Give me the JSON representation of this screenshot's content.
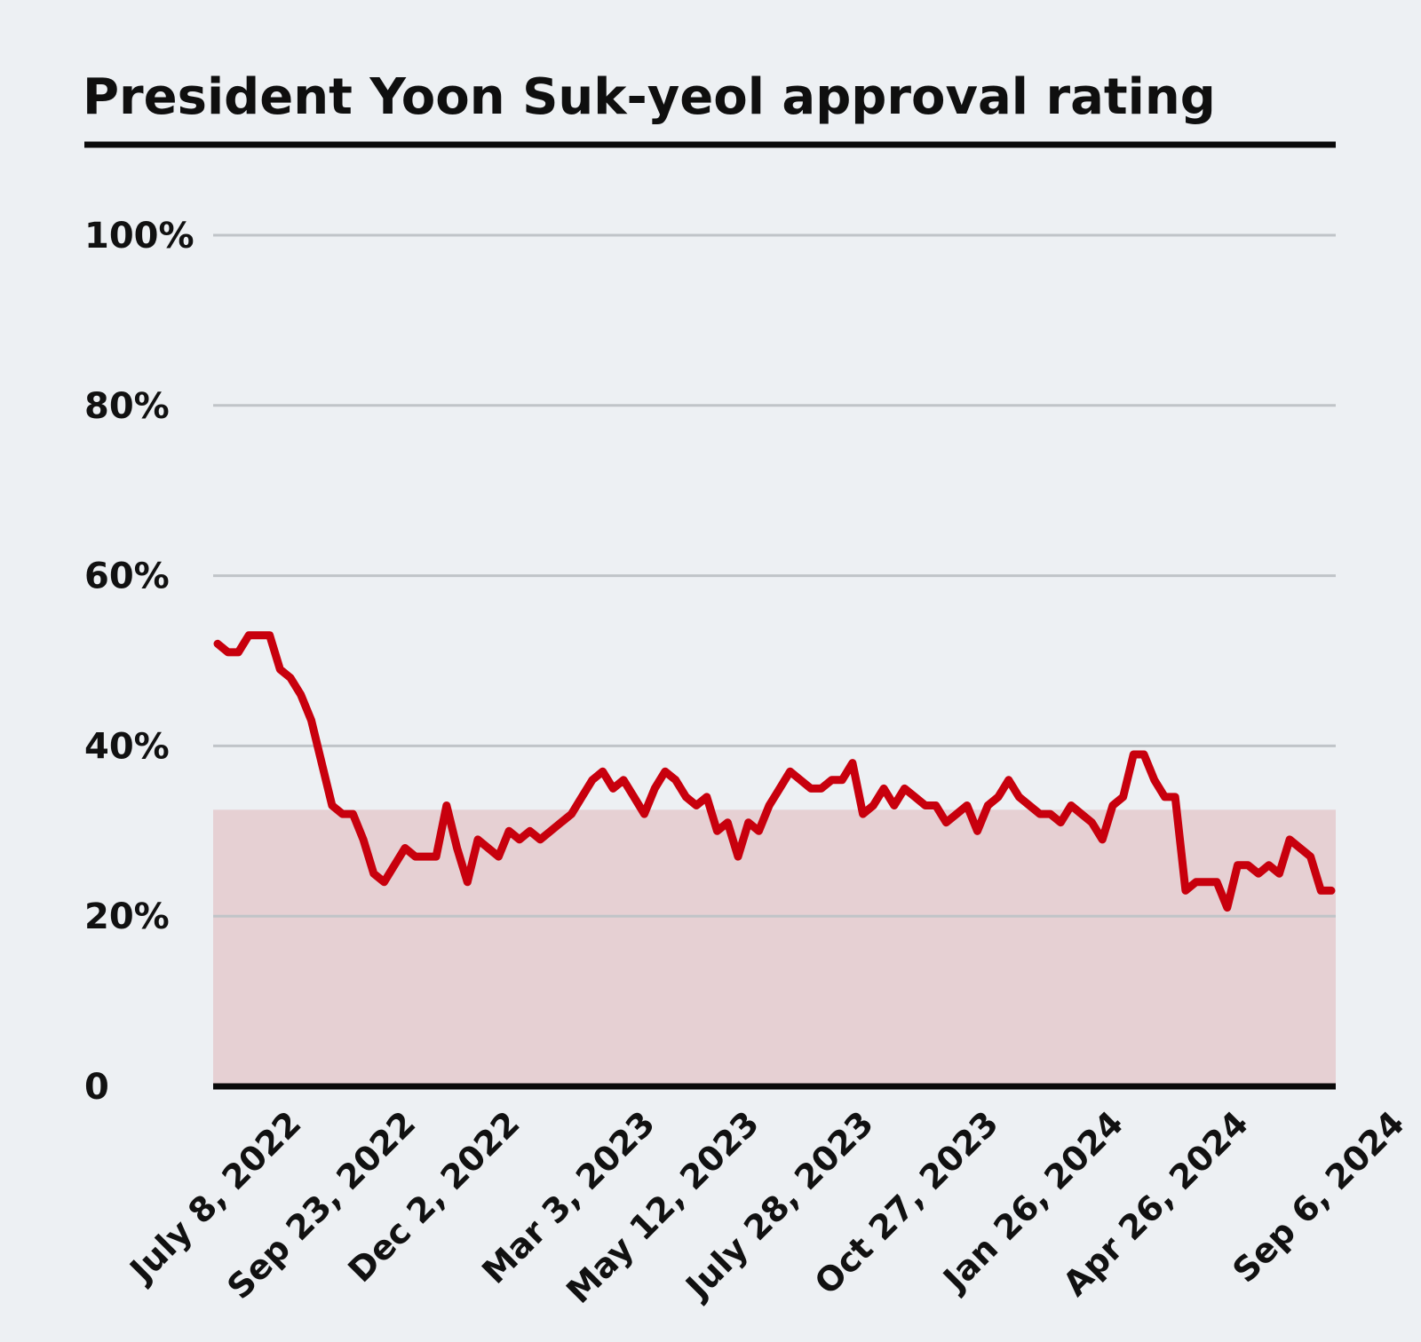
{
  "chart_data": {
    "type": "line",
    "title": "President Yoon Suk-yeol approval rating",
    "xlabel": "",
    "ylabel": "",
    "ylim": [
      0,
      100
    ],
    "y_ticks": [
      {
        "value": 0,
        "label": "0"
      },
      {
        "value": 20,
        "label": "20%"
      },
      {
        "value": 40,
        "label": "40%"
      },
      {
        "value": 60,
        "label": "60%"
      },
      {
        "value": 80,
        "label": "80%"
      },
      {
        "value": 100,
        "label": "100%"
      }
    ],
    "x_ticks": [
      {
        "index": 7,
        "label": "July 8, 2022"
      },
      {
        "index": 18,
        "label": "Sep 23, 2022"
      },
      {
        "index": 28,
        "label": "Dec 2, 2022"
      },
      {
        "index": 41,
        "label": "Mar 3, 2023"
      },
      {
        "index": 51,
        "label": "May 12, 2023"
      },
      {
        "index": 62,
        "label": "July 28, 2023"
      },
      {
        "index": 74,
        "label": "Oct 27, 2023"
      },
      {
        "index": 86,
        "label": "Jan 26, 2024"
      },
      {
        "index": 98,
        "label": "Apr 26, 2024"
      },
      {
        "index": 113,
        "label": "Sep 6, 2024"
      }
    ],
    "shaded_band": {
      "from": 0,
      "to": 32.5,
      "color": "#e6d0d3"
    },
    "grid": true,
    "colors": {
      "line": "#c8000d",
      "grid": "#c0c4c8",
      "axis": "#0a0a0a",
      "background": "#edf0f3"
    },
    "series": [
      {
        "values": [
          52,
          51,
          51,
          53,
          53,
          53,
          49,
          48,
          46,
          43,
          38,
          33,
          32,
          32,
          29,
          25,
          24,
          26,
          28,
          27,
          27,
          27,
          33,
          28,
          24,
          29,
          28,
          27,
          30,
          29,
          30,
          29,
          30,
          31,
          32,
          34,
          36,
          37,
          35,
          36,
          34,
          32,
          35,
          37,
          36,
          34,
          33,
          34,
          30,
          31,
          27,
          31,
          30,
          33,
          35,
          37,
          36,
          35,
          35,
          36,
          36,
          38,
          32,
          33,
          35,
          33,
          35,
          34,
          33,
          33,
          31,
          32,
          33,
          30,
          33,
          34,
          36,
          34,
          33,
          32,
          32,
          31,
          33,
          32,
          31,
          29,
          33,
          34,
          39,
          39,
          36,
          34,
          34,
          23,
          24,
          24,
          24,
          21,
          26,
          26,
          25,
          26,
          25,
          29,
          28,
          27,
          23,
          23
        ]
      }
    ]
  }
}
